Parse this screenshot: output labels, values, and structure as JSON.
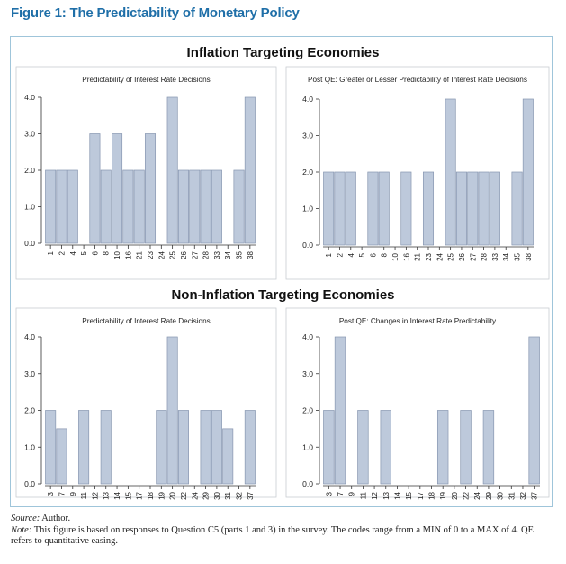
{
  "figure_title": "Figure 1: The Predictability of Monetary Policy",
  "sections": [
    "Inflation Targeting Economies",
    "Non-Inflation Targeting Economies"
  ],
  "notes": {
    "source_label": "Source:",
    "source_text": " Author.",
    "note_label": "Note:",
    "note_text": " This figure is based on responses to Question C5 (parts 1 and 3) in the survey. The codes range from a MIN of 0 to a MAX of 4. QE refers to quantitative easing."
  },
  "colors": {
    "title": "#1f6fa8",
    "bar_fill": "#bdc9db",
    "bar_stroke": "#8796b0",
    "frame": "#9fc5da"
  },
  "chart_data": [
    {
      "type": "bar",
      "title": "Predictability of Interest Rate Decisions",
      "section": "Inflation Targeting Economies",
      "categories": [
        "1",
        "2",
        "4",
        "5",
        "6",
        "8",
        "10",
        "16",
        "21",
        "23",
        "24",
        "25",
        "26",
        "27",
        "28",
        "33",
        "34",
        "35",
        "38"
      ],
      "values": [
        2,
        2,
        2,
        0,
        3,
        2,
        3,
        2,
        2,
        3,
        0,
        4,
        2,
        2,
        2,
        2,
        0,
        2,
        4
      ],
      "yticks": [
        "0.0",
        "1.0",
        "2.0",
        "3.0",
        "4.0"
      ],
      "ylim": [
        0,
        4
      ]
    },
    {
      "type": "bar",
      "title": "Post QE: Greater or Lesser Predictability of Interest Rate Decisions",
      "section": "Inflation Targeting Economies",
      "categories": [
        "1",
        "2",
        "4",
        "5",
        "6",
        "8",
        "10",
        "16",
        "21",
        "23",
        "24",
        "25",
        "26",
        "27",
        "28",
        "33",
        "34",
        "35",
        "38"
      ],
      "values": [
        2,
        2,
        2,
        0,
        2,
        2,
        0,
        2,
        0,
        2,
        0,
        4,
        2,
        2,
        2,
        2,
        0,
        2,
        4
      ],
      "yticks": [
        "0.0",
        "1.0",
        "2.0",
        "3.0",
        "4.0"
      ],
      "ylim": [
        0,
        4
      ]
    },
    {
      "type": "bar",
      "title": "Predictability of Interest Rate Decisions",
      "section": "Non-Inflation Targeting Economies",
      "categories": [
        "3",
        "7",
        "9",
        "11",
        "12",
        "13",
        "14",
        "15",
        "17",
        "18",
        "19",
        "20",
        "22",
        "24",
        "29",
        "30",
        "31",
        "32",
        "37"
      ],
      "values": [
        2,
        1.5,
        0,
        2,
        0,
        2,
        0,
        0,
        0,
        0,
        2,
        4,
        2,
        0,
        2,
        2,
        1.5,
        0,
        2
      ],
      "yticks": [
        "0.0",
        "1.0",
        "2.0",
        "3.0",
        "4.0"
      ],
      "ylim": [
        0,
        4
      ]
    },
    {
      "type": "bar",
      "title": "Post QE: Changes in Interest Rate Predictability",
      "section": "Non-Inflation Targeting Economies",
      "categories": [
        "3",
        "7",
        "9",
        "11",
        "12",
        "13",
        "14",
        "15",
        "17",
        "18",
        "19",
        "20",
        "22",
        "24",
        "29",
        "30",
        "31",
        "32",
        "37"
      ],
      "values": [
        2,
        4,
        0,
        2,
        0,
        2,
        0,
        0,
        0,
        0,
        2,
        0,
        2,
        0,
        2,
        0,
        0,
        0,
        4
      ],
      "yticks": [
        "0.0",
        "1.0",
        "2.0",
        "3.0",
        "4.0"
      ],
      "ylim": [
        0,
        4
      ]
    }
  ]
}
